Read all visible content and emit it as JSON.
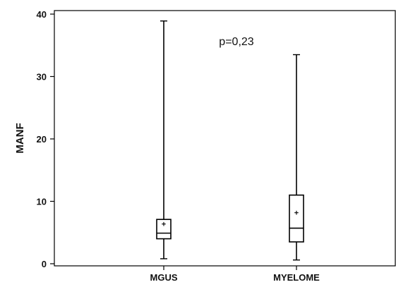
{
  "chart_data": {
    "type": "box",
    "ylabel": "MANF",
    "xlabel": "",
    "title": "",
    "ylim": [
      0,
      40
    ],
    "yticks": [
      0,
      10,
      20,
      30,
      40
    ],
    "annotation": "p=0,23",
    "categories": [
      "MGUS",
      "MYELOME"
    ],
    "boxes": [
      {
        "label": "MGUS",
        "min": 0.8,
        "q1": 4.0,
        "median": 4.9,
        "q3": 7.1,
        "max": 38.9,
        "mean": 6.4
      },
      {
        "label": "MYELOME",
        "min": 0.6,
        "q1": 3.5,
        "median": 5.7,
        "q3": 11.0,
        "max": 33.5,
        "mean": 8.2
      }
    ],
    "grid": false,
    "legend": "none"
  }
}
